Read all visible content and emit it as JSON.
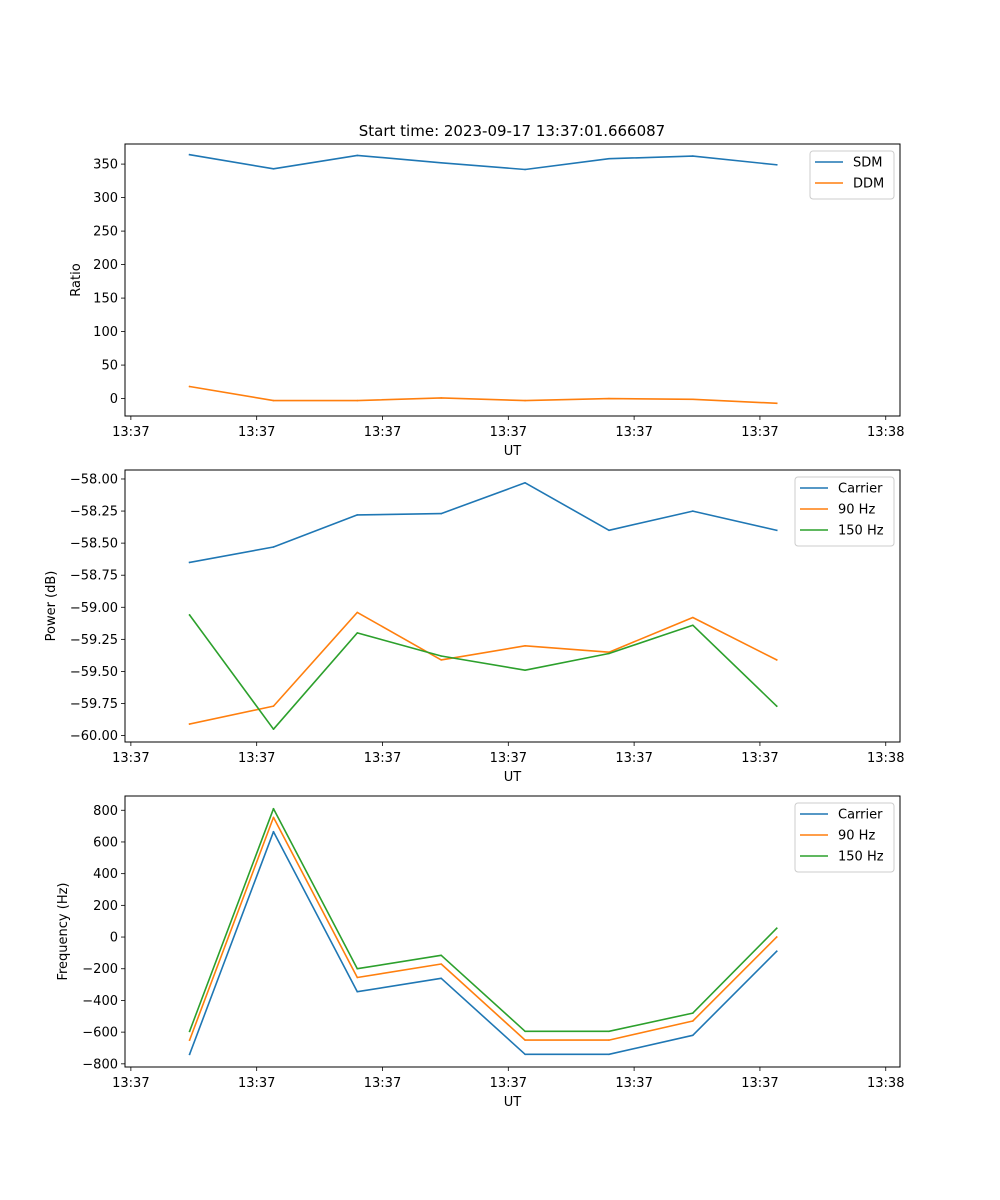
{
  "figure": {
    "title": "Start time: 2023-09-17 13:37:01.666087"
  },
  "colors": {
    "blue": "#1f77b4",
    "orange": "#ff7f0e",
    "green": "#2ca02c"
  },
  "chart_data": [
    {
      "type": "line",
      "title": "Start time: 2023-09-17 13:37:01.666087",
      "xlabel": "UT",
      "ylabel": "Ratio",
      "x": [
        1,
        2,
        3,
        4,
        5,
        6,
        7,
        8
      ],
      "x_tick_labels": [
        "13:37",
        "13:37",
        "13:37",
        "13:37",
        "13:37",
        "13:37",
        "13:38"
      ],
      "ylim": [
        -26,
        380
      ],
      "y_ticks": [
        0,
        50,
        100,
        150,
        200,
        250,
        300,
        350
      ],
      "legend_position": "top-right",
      "series": [
        {
          "name": "SDM",
          "color": "#1f77b4",
          "values": [
            364,
            343,
            363,
            352,
            342,
            358,
            362,
            349
          ]
        },
        {
          "name": "DDM",
          "color": "#ff7f0e",
          "values": [
            18,
            -3,
            -3,
            1,
            -3,
            0,
            -1,
            -7
          ]
        }
      ]
    },
    {
      "type": "line",
      "title": "",
      "xlabel": "UT",
      "ylabel": "Power (dB)",
      "x": [
        1,
        2,
        3,
        4,
        5,
        6,
        7,
        8
      ],
      "x_tick_labels": [
        "13:37",
        "13:37",
        "13:37",
        "13:37",
        "13:37",
        "13:37",
        "13:38"
      ],
      "ylim": [
        -60.05,
        -57.93
      ],
      "y_ticks": [
        -60.0,
        -59.75,
        -59.5,
        -59.25,
        -59.0,
        -58.75,
        -58.5,
        -58.25,
        -58.0
      ],
      "y_tick_labels": [
        "−60.00",
        "−59.75",
        "−59.50",
        "−59.25",
        "−59.00",
        "−58.75",
        "−58.50",
        "−58.25",
        "−58.00"
      ],
      "legend_position": "top-right",
      "series": [
        {
          "name": "Carrier",
          "color": "#1f77b4",
          "values": [
            -58.65,
            -58.53,
            -58.28,
            -58.27,
            -58.03,
            -58.4,
            -58.25,
            -58.4
          ]
        },
        {
          "name": "90 Hz",
          "color": "#ff7f0e",
          "values": [
            -59.91,
            -59.77,
            -59.04,
            -59.41,
            -59.3,
            -59.35,
            -59.08,
            -59.41
          ]
        },
        {
          "name": "150 Hz",
          "color": "#2ca02c",
          "values": [
            -59.06,
            -59.95,
            -59.2,
            -59.38,
            -59.49,
            -59.36,
            -59.14,
            -59.77
          ]
        }
      ]
    },
    {
      "type": "line",
      "title": "",
      "xlabel": "UT",
      "ylabel": "Frequency (Hz)",
      "x": [
        1,
        2,
        3,
        4,
        5,
        6,
        7,
        8
      ],
      "x_tick_labels": [
        "13:37",
        "13:37",
        "13:37",
        "13:37",
        "13:37",
        "13:37",
        "13:38"
      ],
      "ylim": [
        -820,
        890
      ],
      "y_ticks": [
        -800,
        -600,
        -400,
        -200,
        0,
        200,
        400,
        600,
        800
      ],
      "y_tick_labels": [
        "−800",
        "−600",
        "−400",
        "−200",
        "0",
        "200",
        "400",
        "600",
        "800"
      ],
      "legend_position": "top-right",
      "series": [
        {
          "name": "Carrier",
          "color": "#1f77b4",
          "values": [
            -740,
            665,
            -345,
            -260,
            -740,
            -740,
            -620,
            -90
          ]
        },
        {
          "name": "90 Hz",
          "color": "#ff7f0e",
          "values": [
            -650,
            755,
            -255,
            -170,
            -650,
            -650,
            -530,
            0
          ]
        },
        {
          "name": "150 Hz",
          "color": "#2ca02c",
          "values": [
            -595,
            810,
            -200,
            -115,
            -595,
            -595,
            -480,
            55
          ]
        }
      ]
    }
  ]
}
